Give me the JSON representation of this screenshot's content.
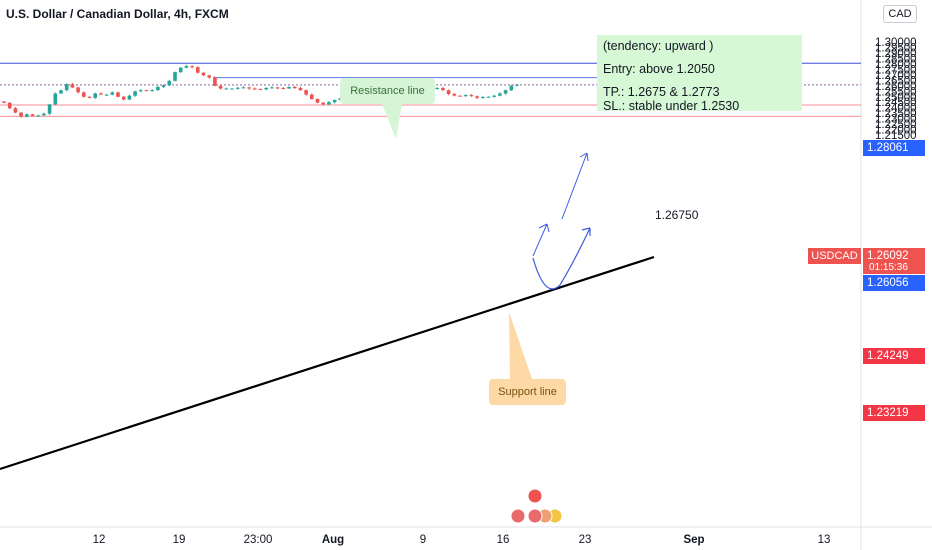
{
  "title": "U.S. Dollar / Canadian Dollar, 4h, FXCM",
  "quote_currency": "CAD",
  "note": {
    "line1": "(tendency: upward  )",
    "line2": "Entry: above 1.2050",
    "line3": "TP.: 1.2675 & 1.2773",
    "line4": "SL.: stable under 1.2530"
  },
  "callouts": {
    "resistance": "Resistance line",
    "support": "Support line"
  },
  "level_label": "1.26750",
  "price_tags": {
    "resistance": "1.28061",
    "upper_support": "1.24249",
    "lower_support": "1.23219",
    "current_price": "1.26092",
    "symbol": "USDCAD",
    "countdown": "01:15:36",
    "crosshair": "1.26056"
  },
  "colors": {
    "up_candle": "#26a69a",
    "down_candle": "#ef5350",
    "resistance_line": "#3c50d8",
    "support_level": "#f23645",
    "blue_tag": "#2962ff",
    "note_bg": "#d6f8d4"
  },
  "chart_data": {
    "type": "candlestick",
    "title": "U.S. Dollar / Canadian Dollar, 4h, FXCM",
    "x_ticks": [
      "12",
      "19",
      "23:00",
      "Aug",
      "9",
      "16",
      "23",
      "Sep",
      "13"
    ],
    "y_ticks": [
      "1.30000",
      "1.29500",
      "1.29000",
      "1.28500",
      "1.28000",
      "1.27500",
      "1.27000",
      "1.26500",
      "1.26000",
      "1.25500",
      "1.25000",
      "1.24500",
      "1.24000",
      "1.23500",
      "1.23000",
      "1.22500",
      "1.22000",
      "1.21500"
    ],
    "ylim": [
      1.2125,
      1.3045
    ],
    "x_axis": "time (4h bars, July–September)",
    "grid": false,
    "price_path_close": [
      1.2445,
      1.2395,
      1.2355,
      1.2318,
      1.234,
      1.2325,
      1.233,
      1.2345,
      1.243,
      1.253,
      1.256,
      1.2615,
      1.2585,
      1.254,
      1.25,
      1.249,
      1.253,
      1.252,
      1.252,
      1.254,
      1.25,
      1.2475,
      1.251,
      1.255,
      1.256,
      1.2555,
      1.256,
      1.259,
      1.2605,
      1.2645,
      1.2725,
      1.2765,
      1.278,
      1.277,
      1.272,
      1.2695,
      1.2675,
      1.26,
      1.2575,
      1.2575,
      1.2575,
      1.2582,
      1.2585,
      1.2575,
      1.257,
      1.2568,
      1.258,
      1.2585,
      1.258,
      1.2575,
      1.259,
      1.258,
      1.256,
      1.252,
      1.248,
      1.2445,
      1.243,
      1.245,
      1.247,
      1.2485,
      1.25,
      1.252,
      1.254,
      1.2545,
      1.2555,
      1.255,
      1.254,
      1.252,
      1.251,
      1.2525,
      1.2545,
      1.256,
      1.258,
      1.2585,
      1.258,
      1.2575,
      1.258,
      1.256,
      1.2525,
      1.251,
      1.2508,
      1.2515,
      1.2505,
      1.249,
      1.2497,
      1.25,
      1.251,
      1.253,
      1.256,
      1.26,
      1.261
    ],
    "annotations": {
      "resistance_level": 1.28061,
      "take_profit_level": 1.2675,
      "support_levels": [
        1.24249,
        1.23219
      ],
      "current_price": 1.26092,
      "crosshair_price": 1.26056
    }
  }
}
